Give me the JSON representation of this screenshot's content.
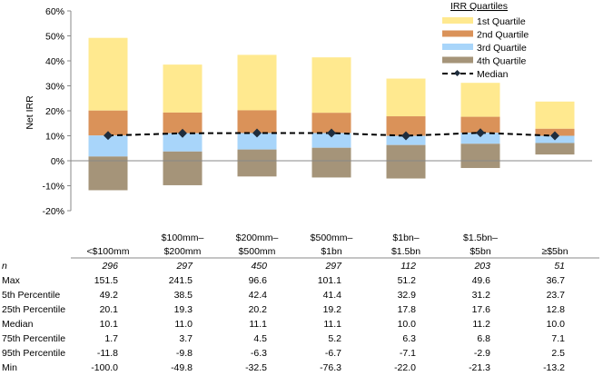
{
  "chart_data": {
    "type": "bar",
    "stacked": true,
    "ylabel": "Net IRR",
    "ylim": [
      -20,
      60
    ],
    "yticks": [
      "60%",
      "50%",
      "40%",
      "30%",
      "20%",
      "10%",
      "0%",
      "-10%",
      "-20%"
    ],
    "ytick_values": [
      60,
      50,
      40,
      30,
      20,
      10,
      0,
      -10,
      -20
    ],
    "grid": false,
    "legend": {
      "title": "IRR Quartiles",
      "placement": "top-right",
      "entries": [
        "1st Quartile",
        "2nd Quartile",
        "3rd Quartile",
        "4th Quartile",
        "Median"
      ]
    },
    "colors": {
      "q1": "#FFE98F",
      "q2": "#DA9259",
      "q3": "#A8D5FA",
      "q4": "#A59479",
      "median": "#1F2D3D"
    },
    "categories": [
      [
        "",
        "<$100mm"
      ],
      [
        "$100mm–",
        "$200mm"
      ],
      [
        "$200mm–",
        "$500mm"
      ],
      [
        "$500mm–",
        "$1bn"
      ],
      [
        "$1bn–",
        "$1.5bn"
      ],
      [
        "$1.5bn–",
        "$5bn"
      ],
      [
        "",
        "≥$5bn"
      ]
    ],
    "table": {
      "rows": [
        {
          "label": "n",
          "italic": true,
          "values": [
            "296",
            "297",
            "450",
            "297",
            "112",
            "203",
            "51"
          ]
        },
        {
          "label": "Max",
          "values": [
            "151.5",
            "241.5",
            "96.6",
            "101.1",
            "51.2",
            "49.6",
            "36.7"
          ]
        },
        {
          "label": "5th Percentile",
          "values": [
            "49.2",
            "38.5",
            "42.4",
            "41.4",
            "32.9",
            "31.2",
            "23.7"
          ]
        },
        {
          "label": "25th Percentile",
          "values": [
            "20.1",
            "19.3",
            "20.2",
            "19.2",
            "17.8",
            "17.6",
            "12.8"
          ]
        },
        {
          "label": "Median",
          "values": [
            "10.1",
            "11.0",
            "11.1",
            "11.1",
            "10.0",
            "11.2",
            "10.0"
          ]
        },
        {
          "label": "75th Percentile",
          "values": [
            "1.7",
            "3.7",
            "4.5",
            "5.2",
            "6.3",
            "6.8",
            "7.1"
          ]
        },
        {
          "label": "95th Percentile",
          "values": [
            "-11.8",
            "-9.8",
            "-6.3",
            "-6.7",
            "-7.1",
            "-2.9",
            "2.5"
          ]
        },
        {
          "label": "Min",
          "values": [
            "-100.0",
            "-49.8",
            "-32.5",
            "-76.3",
            "-22.0",
            "-21.3",
            "-13.2"
          ]
        }
      ]
    },
    "series": [
      {
        "name": "1st Quartile",
        "from": [
          20.1,
          19.3,
          20.2,
          19.2,
          17.8,
          17.6,
          12.8
        ],
        "to": [
          49.2,
          38.5,
          42.4,
          41.4,
          32.9,
          31.2,
          23.7
        ]
      },
      {
        "name": "2nd Quartile",
        "from": [
          10.1,
          11.0,
          11.1,
          11.1,
          10.0,
          11.2,
          10.0
        ],
        "to": [
          20.1,
          19.3,
          20.2,
          19.2,
          17.8,
          17.6,
          12.8
        ]
      },
      {
        "name": "3rd Quartile",
        "from": [
          1.7,
          3.7,
          4.5,
          5.2,
          6.3,
          6.8,
          7.1
        ],
        "to": [
          10.1,
          11.0,
          11.1,
          11.1,
          10.0,
          11.2,
          10.0
        ]
      },
      {
        "name": "4th Quartile",
        "from": [
          -11.8,
          -9.8,
          -6.3,
          -6.7,
          -7.1,
          -2.9,
          2.5
        ],
        "to": [
          1.7,
          3.7,
          4.5,
          5.2,
          6.3,
          6.8,
          7.1
        ]
      },
      {
        "name": "Median",
        "values": [
          10.1,
          11.0,
          11.1,
          11.1,
          10.0,
          11.2,
          10.0
        ]
      }
    ]
  }
}
